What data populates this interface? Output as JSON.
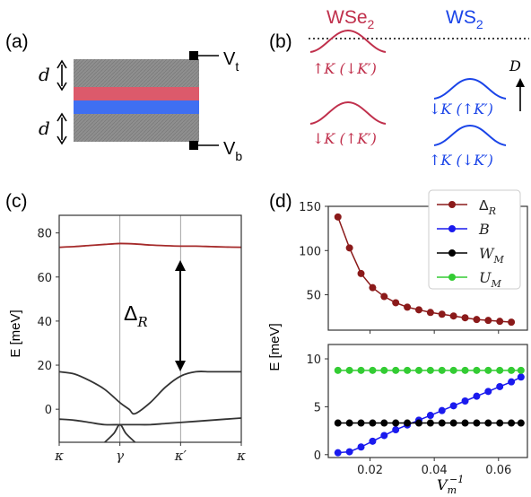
{
  "panel_a": {
    "label": "(a)",
    "d_top": "d",
    "d_bottom": "d",
    "vt": "V",
    "vt_sub": "t",
    "vb": "V",
    "vb_sub": "b",
    "colors": {
      "gate": "#8f8f8f",
      "wse2": "#dc5a6b",
      "ws2": "#3f6ff2"
    }
  },
  "panel_b": {
    "label": "(b)",
    "wse2_title": "WSe",
    "wse2_sub": "2",
    "ws2_title": "WS",
    "ws2_sub": "2",
    "d_label": "D",
    "wse2_bands": [
      "↑K (↓K′)",
      "↓K (↑K′)"
    ],
    "ws2_bands": [
      "↓K (↑K′)",
      "↑K (↓K′)"
    ],
    "colors": {
      "wse2": "#c0304c",
      "ws2": "#1a44e8"
    }
  },
  "chart_data": [
    {
      "panel": "(c)",
      "type": "line",
      "ylabel": "E [meV]",
      "xticks": [
        "κ",
        "γ",
        "κ′",
        "κ"
      ],
      "ylim": [
        -15,
        88
      ],
      "yticks": [
        0,
        20,
        40,
        60,
        80
      ],
      "annotation": "Δ",
      "annotation_sub": "R",
      "series": [
        {
          "color": "#a52a2a",
          "x": [
            0,
            0.5,
            1,
            1.5,
            2,
            2.5,
            3,
            3.5,
            4,
            4.5,
            5,
            5.5,
            6
          ],
          "values": [
            73.5,
            73.8,
            74.3,
            74.8,
            75.2,
            75.0,
            74.5,
            74.2,
            74.0,
            74.0,
            73.8,
            73.6,
            73.5
          ]
        },
        {
          "color": "#333333",
          "x": [
            0,
            0.5,
            1,
            1.5,
            2,
            2.3,
            2.5,
            3,
            3.5,
            4,
            4.5,
            5,
            5.5,
            6
          ],
          "values": [
            17,
            16,
            13,
            9,
            3,
            0,
            -2,
            3,
            10,
            15,
            17,
            17,
            17,
            17
          ]
        },
        {
          "color": "#333333",
          "x": [
            0,
            0.5,
            1,
            1.5,
            2,
            2.5,
            3,
            3.5,
            4,
            4.5,
            5,
            5.5,
            6
          ],
          "values": [
            -4.5,
            -5,
            -6,
            -7,
            -7,
            -7,
            -7,
            -6.5,
            -6,
            -5.5,
            -5,
            -4.5,
            -4
          ]
        },
        {
          "color": "#333333",
          "x": [
            1.5,
            1.8,
            2,
            2.2,
            2.5
          ],
          "values": [
            -15,
            -11,
            -7,
            -11,
            -15
          ]
        }
      ]
    },
    {
      "panel": "(d) upper",
      "type": "line",
      "ylim": [
        10,
        150
      ],
      "yticks": [
        50,
        100,
        150
      ],
      "xlim": [
        0.007,
        0.069
      ],
      "series": [
        {
          "name": "Δ_R",
          "color": "#8b1a1a",
          "x": [
            0.01,
            0.0136,
            0.0172,
            0.0208,
            0.0244,
            0.028,
            0.0316,
            0.0352,
            0.0388,
            0.0424,
            0.046,
            0.0496,
            0.0532,
            0.0568,
            0.0604,
            0.064
          ],
          "values": [
            138,
            103,
            74,
            58,
            48,
            41,
            36,
            33,
            30,
            28,
            26,
            24,
            22,
            21,
            20,
            19
          ]
        }
      ]
    },
    {
      "panel": "(d) lower",
      "type": "line",
      "ylabel": "E [meV]",
      "xlabel": "V_m^{-1}",
      "ylim": [
        -0.3,
        11.5
      ],
      "yticks": [
        0,
        5,
        10
      ],
      "xlim": [
        0.007,
        0.069
      ],
      "xticks": [
        0.02,
        0.04,
        0.06
      ],
      "series": [
        {
          "name": "B",
          "color": "#1a1aee",
          "x": [
            0.01,
            0.0136,
            0.0172,
            0.0208,
            0.0244,
            0.028,
            0.0316,
            0.0352,
            0.0388,
            0.0424,
            0.046,
            0.0496,
            0.0532,
            0.0568,
            0.0604,
            0.064,
            0.067
          ],
          "values": [
            0.2,
            0.3,
            0.8,
            1.4,
            2.0,
            2.6,
            3.1,
            3.6,
            4.1,
            4.6,
            5.1,
            5.6,
            6.1,
            6.6,
            7.1,
            7.6,
            8.1
          ]
        },
        {
          "name": "W_M",
          "color": "#000000",
          "x": [
            0.01,
            0.0136,
            0.0172,
            0.0208,
            0.0244,
            0.028,
            0.0316,
            0.0352,
            0.0388,
            0.0424,
            0.046,
            0.0496,
            0.0532,
            0.0568,
            0.0604,
            0.064,
            0.067
          ],
          "values": [
            3.3,
            3.3,
            3.3,
            3.3,
            3.3,
            3.3,
            3.3,
            3.3,
            3.3,
            3.3,
            3.3,
            3.3,
            3.3,
            3.3,
            3.3,
            3.3,
            3.3
          ]
        },
        {
          "name": "U_M",
          "color": "#33cc33",
          "x": [
            0.01,
            0.0136,
            0.0172,
            0.0208,
            0.0244,
            0.028,
            0.0316,
            0.0352,
            0.0388,
            0.0424,
            0.046,
            0.0496,
            0.0532,
            0.0568,
            0.0604,
            0.064,
            0.067
          ],
          "values": [
            8.8,
            8.8,
            8.8,
            8.8,
            8.8,
            8.8,
            8.8,
            8.8,
            8.8,
            8.8,
            8.8,
            8.8,
            8.8,
            8.8,
            8.8,
            8.8,
            8.8
          ]
        }
      ]
    }
  ],
  "panel_c_label": "(c)",
  "panel_d_label": "(d)",
  "legend": [
    {
      "sym": "Δ",
      "sub": "R",
      "color": "#8b1a1a"
    },
    {
      "sym": "B",
      "sub": "",
      "color": "#1a1aee"
    },
    {
      "sym": "W",
      "sub": "M",
      "color": "#000000"
    },
    {
      "sym": "U",
      "sub": "M",
      "color": "#33cc33"
    }
  ]
}
